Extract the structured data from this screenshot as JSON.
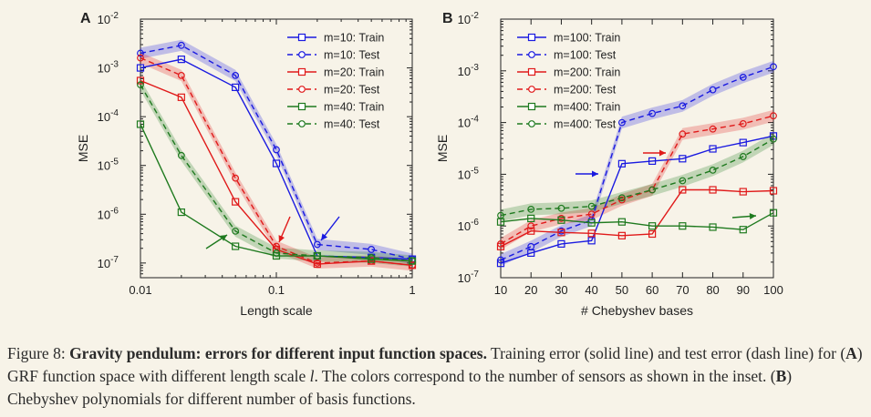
{
  "chart_data": [
    {
      "type": "line",
      "panel": "A",
      "xlabel": "Length scale",
      "ylabel": "MSE",
      "xscale": "log",
      "yscale": "log",
      "xlim": [
        0.01,
        1
      ],
      "ylim": [
        5e-08,
        0.01
      ],
      "xticklabels": [
        "0.01",
        "0.1",
        "1"
      ],
      "yticklabels": [
        {
          "base": "10",
          "exp": "-2"
        },
        {
          "base": "10",
          "exp": "-3"
        },
        {
          "base": "10",
          "exp": "-4"
        },
        {
          "base": "10",
          "exp": "-5"
        },
        {
          "base": "10",
          "exp": "-6"
        },
        {
          "base": "10",
          "exp": "-7"
        }
      ],
      "legend_position": "top-right",
      "x": [
        0.01,
        0.02,
        0.05,
        0.1,
        0.2,
        0.5,
        1.0
      ],
      "series": [
        {
          "name": "m=10: Train",
          "color": "#1a1ae0",
          "style": "solid",
          "marker": "square",
          "values": [
            0.001,
            0.0015,
            0.0004,
            1.1e-05,
            1.4e-07,
            1.3e-07,
            1.2e-07
          ]
        },
        {
          "name": "m=10: Test",
          "color": "#1a1ae0",
          "style": "dashed",
          "marker": "circle",
          "values": [
            0.002,
            0.0029,
            0.0007,
            2.1e-05,
            2.4e-07,
            1.9e-07,
            1.2e-07
          ]
        },
        {
          "name": "m=20: Train",
          "color": "#e01a1a",
          "style": "solid",
          "marker": "square",
          "values": [
            0.00055,
            0.00025,
            1.8e-06,
            1.9e-07,
            9.5e-08,
            1.1e-07,
            9e-08
          ]
        },
        {
          "name": "m=20: Test",
          "color": "#e01a1a",
          "style": "dashed",
          "marker": "circle",
          "values": [
            0.0016,
            0.0007,
            5.5e-06,
            2.2e-07,
            1e-07,
            1.1e-07,
            9e-08
          ]
        },
        {
          "name": "m=40: Train",
          "color": "#1f7a1f",
          "style": "solid",
          "marker": "square",
          "values": [
            7e-05,
            1.1e-06,
            2.2e-07,
            1.4e-07,
            1.4e-07,
            1.2e-07,
            1.1e-07
          ]
        },
        {
          "name": "m=40: Test",
          "color": "#1f7a1f",
          "style": "dashed",
          "marker": "circle",
          "values": [
            0.00045,
            1.6e-05,
            4.5e-07,
            1.6e-07,
            1.4e-07,
            1.3e-07,
            1.1e-07
          ]
        }
      ],
      "arrows": [
        {
          "color": "#e01a1a",
          "at_x": 0.1
        },
        {
          "color": "#1a1ae0",
          "at_x": 0.2
        },
        {
          "color": "#1f7a1f",
          "at_x": 0.05
        }
      ]
    },
    {
      "type": "line",
      "panel": "B",
      "xlabel": "# Chebyshev bases",
      "ylabel": "MSE",
      "yscale": "log",
      "xlim": [
        10,
        100
      ],
      "ylim": [
        1e-07,
        0.01
      ],
      "xticklabels": [
        "10",
        "20",
        "30",
        "40",
        "50",
        "60",
        "70",
        "80",
        "90",
        "100"
      ],
      "yticklabels": [
        {
          "base": "10",
          "exp": "-2"
        },
        {
          "base": "10",
          "exp": "-3"
        },
        {
          "base": "10",
          "exp": "-4"
        },
        {
          "base": "10",
          "exp": "-5"
        },
        {
          "base": "10",
          "exp": "-6"
        },
        {
          "base": "10",
          "exp": "-7"
        }
      ],
      "legend_position": "top-left",
      "x": [
        10,
        20,
        30,
        40,
        50,
        60,
        70,
        80,
        90,
        100
      ],
      "series": [
        {
          "name": "m=100: Train",
          "color": "#1a1ae0",
          "style": "solid",
          "marker": "square",
          "values": [
            1.9e-07,
            3e-07,
            4.5e-07,
            5.2e-07,
            1.6e-05,
            1.8e-05,
            2e-05,
            3.1e-05,
            4.1e-05,
            5.5e-05
          ]
        },
        {
          "name": "m=100: Test",
          "color": "#1a1ae0",
          "style": "dashed",
          "marker": "circle",
          "values": [
            2.2e-07,
            4e-07,
            8e-07,
            1.3e-06,
            0.0001,
            0.00015,
            0.00021,
            0.00043,
            0.00075,
            0.0012
          ]
        },
        {
          "name": "m=200: Train",
          "color": "#e01a1a",
          "style": "solid",
          "marker": "square",
          "values": [
            4e-07,
            8e-07,
            7.5e-07,
            7.2e-07,
            6.5e-07,
            7e-07,
            5e-06,
            5e-06,
            4.6e-06,
            4.8e-06
          ]
        },
        {
          "name": "m=200: Test",
          "color": "#e01a1a",
          "style": "dashed",
          "marker": "circle",
          "values": [
            4.5e-07,
            1e-06,
            1.4e-06,
            1.7e-06,
            3.2e-06,
            5e-06,
            6e-05,
            7.5e-05,
            9.5e-05,
            0.000135
          ]
        },
        {
          "name": "m=400: Train",
          "color": "#1f7a1f",
          "style": "solid",
          "marker": "square",
          "values": [
            1.2e-06,
            1.4e-06,
            1.3e-06,
            1.15e-06,
            1.2e-06,
            1e-06,
            1e-06,
            9.5e-07,
            8.5e-07,
            1.8e-06
          ]
        },
        {
          "name": "m=400: Test",
          "color": "#1f7a1f",
          "style": "dashed",
          "marker": "circle",
          "values": [
            1.6e-06,
            2.1e-06,
            2.2e-06,
            2.4e-06,
            3.5e-06,
            5e-06,
            7.5e-06,
            1.2e-05,
            2.2e-05,
            4.8e-05
          ]
        }
      ],
      "arrows": [
        {
          "color": "#1a1ae0",
          "at_x": 50
        },
        {
          "color": "#e01a1a",
          "at_x": 70
        },
        {
          "color": "#1f7a1f",
          "at_x": 100
        }
      ]
    }
  ],
  "caption": {
    "label": "Figure 8:",
    "bold_title": "Gravity pendulum: errors for different input function spaces.",
    "text1": "Training error (solid line) and test error (dash line) for (",
    "A": "A",
    "text2": ") GRF function space with different length scale ",
    "l": "l",
    "text3": ". The colors correspond to the number of sensors as shown in the inset. (",
    "B": "B",
    "text4": ") Chebyshev polynomials for different number of basis functions."
  }
}
